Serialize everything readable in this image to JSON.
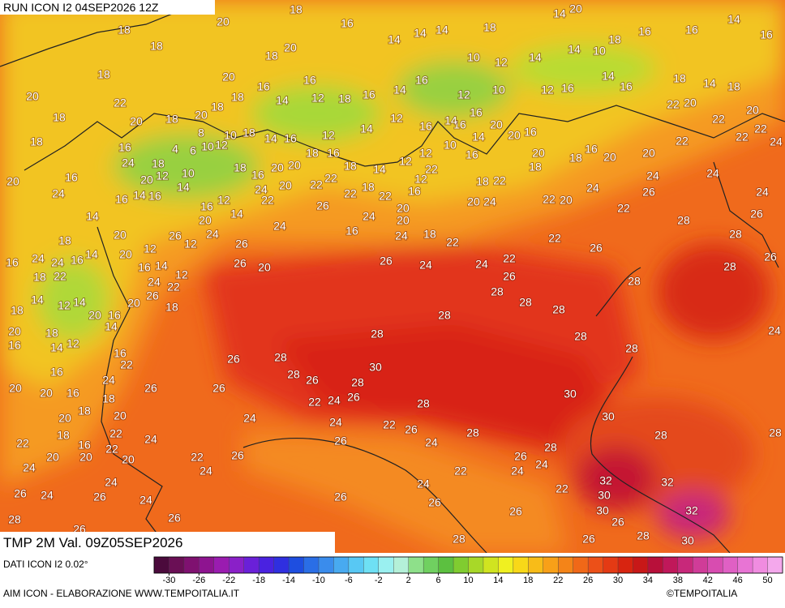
{
  "header": {
    "title": "RUN ICON I2 04SEP2026 12Z"
  },
  "footer": {
    "valid": "TMP 2M Val. 09Z05SEP2026",
    "source": "DATI ICON I2 0.02°",
    "credit": "AIM ICON - ELABORAZIONE WWW.TEMPOITALIA.IT",
    "copyright": "©TEMPOITALIA"
  },
  "map": {
    "labels": [
      18,
      20,
      18,
      16,
      14,
      18,
      18,
      20,
      16,
      18,
      20,
      20,
      22,
      18,
      20,
      18,
      20,
      18,
      18,
      16,
      14,
      12,
      18,
      16,
      14,
      16,
      12,
      10,
      10,
      12,
      14,
      14,
      10,
      18,
      16,
      16,
      14,
      16,
      20,
      14,
      18,
      14,
      14,
      12,
      16,
      14,
      16,
      18,
      14,
      18,
      20,
      20,
      22,
      22,
      22,
      22,
      24,
      22,
      20,
      20,
      16,
      18,
      20,
      18,
      20,
      16,
      20,
      14,
      16,
      16,
      10,
      12,
      22,
      18,
      22,
      20,
      24,
      22,
      20,
      24,
      24,
      26,
      24,
      24,
      22,
      28,
      26,
      28,
      26,
      28,
      28,
      28,
      28,
      28,
      26,
      22,
      24,
      24,
      26,
      24,
      18,
      22,
      22,
      26,
      28,
      28,
      30,
      30,
      28,
      28,
      24,
      28,
      28,
      30,
      28,
      28,
      26,
      22,
      24,
      26,
      28,
      28,
      26,
      26,
      26,
      24,
      24,
      22,
      26,
      24,
      26,
      28,
      28,
      26,
      24,
      24,
      22,
      24,
      26,
      22,
      32,
      30,
      32,
      32,
      30,
      26,
      26,
      28,
      30,
      26,
      28,
      26,
      26,
      22,
      24,
      26,
      24,
      26,
      24,
      26,
      28,
      26,
      24,
      20,
      20,
      24,
      22,
      22,
      20,
      16,
      18,
      20,
      20,
      24,
      22,
      20,
      20,
      16,
      18,
      18,
      24,
      22,
      16,
      12,
      14,
      18,
      16,
      16,
      20,
      18,
      14,
      12,
      14,
      20,
      14,
      16,
      20,
      26,
      18,
      24,
      22,
      12,
      14,
      16,
      12,
      20,
      14,
      16,
      24,
      24,
      16,
      18,
      22,
      18,
      14,
      20,
      20,
      16,
      24,
      18,
      16,
      24,
      20,
      12,
      10,
      14,
      18,
      14,
      16,
      16,
      4,
      6,
      10,
      12,
      8,
      10,
      18,
      14,
      16,
      18,
      16,
      20,
      20,
      22,
      22,
      20,
      24,
      22,
      14,
      16,
      12,
      20,
      24,
      26,
      24,
      26,
      22,
      18,
      22,
      24,
      16,
      20,
      20,
      16,
      12,
      12,
      14,
      18,
      16,
      18,
      12,
      14,
      12,
      16,
      14,
      16,
      26,
      26,
      20,
      12
    ]
  },
  "colorbar": {
    "lim": [
      -32,
      52
    ],
    "ticks": [
      -30,
      -26,
      -22,
      -18,
      -14,
      -10,
      -6,
      -2,
      2,
      6,
      10,
      14,
      18,
      22,
      26,
      30,
      34,
      38,
      42,
      46,
      50
    ],
    "colors": [
      "#4b0a3c",
      "#6a0f55",
      "#7f1170",
      "#8e1490",
      "#9a1cb0",
      "#8a20c8",
      "#6a20d8",
      "#4a22e0",
      "#2f2fe0",
      "#1e4ee0",
      "#2a6ee6",
      "#3a8cec",
      "#48aaf0",
      "#58c8f4",
      "#6ee0f4",
      "#9af0f0",
      "#b4f0d8",
      "#8ee08a",
      "#70d060",
      "#5cc040",
      "#80cc30",
      "#a8d828",
      "#d0e420",
      "#f0f020",
      "#f8d818",
      "#f8bc18",
      "#f8a018",
      "#f48418",
      "#f06818",
      "#ec5018",
      "#e43a14",
      "#d82410",
      "#c81818",
      "#b8103a",
      "#c0185a",
      "#c8287a",
      "#d03c98",
      "#d84cb0",
      "#e060c4",
      "#e874d4",
      "#f08ce0",
      "#f4a8ec"
    ]
  }
}
